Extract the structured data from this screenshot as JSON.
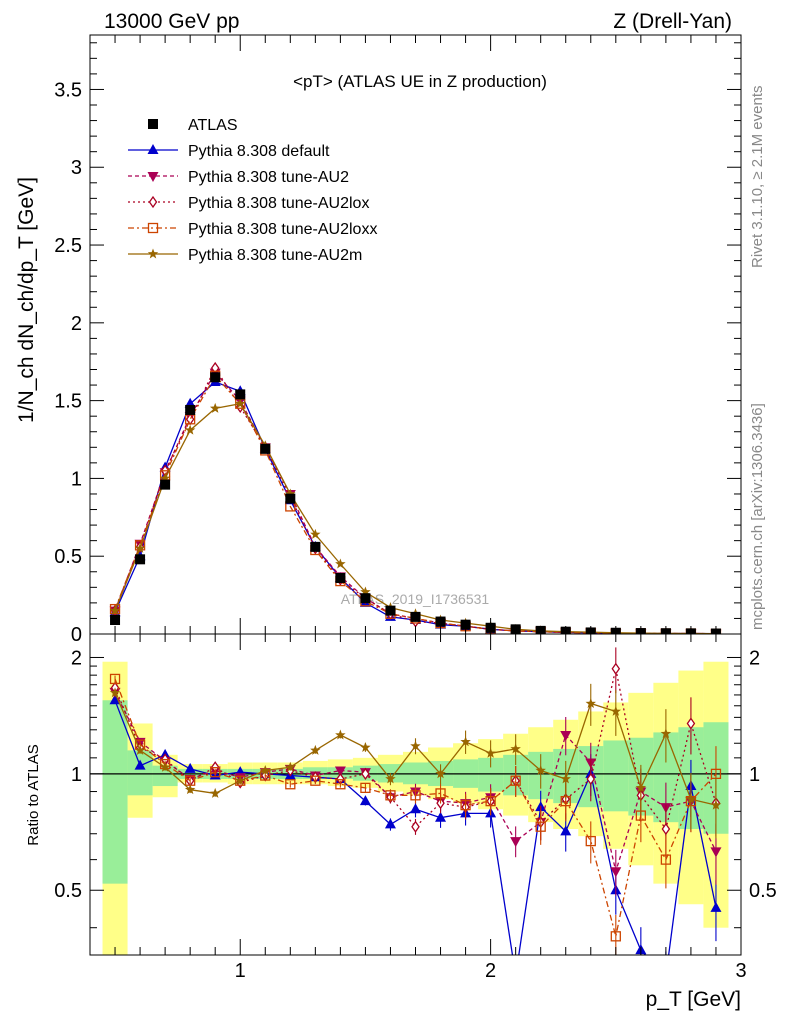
{
  "header": {
    "left": "13000 GeV pp",
    "right": "Z (Drell-Yan)"
  },
  "side_text": {
    "rivet": "Rivet 3.1.10, ≥ 2.1M events",
    "mcplots": "mcplots.cern.ch [arXiv:1306.3436]"
  },
  "watermark": "ATLAS_2019_I1736531",
  "chart_data": [
    {
      "type": "line",
      "title": "<pT> (ATLAS UE in Z production)",
      "ylabel": "1/N_ch dN_ch/dp_T [GeV]",
      "xlabel": "",
      "xlim": [
        0.4,
        3.0
      ],
      "ylim": [
        0,
        3.85
      ],
      "yticks": [
        "0",
        "0.5",
        "1",
        "1.5",
        "2",
        "2.5",
        "3",
        "3.5"
      ],
      "ytick_values": [
        0,
        0.5,
        1,
        1.5,
        2,
        2.5,
        3,
        3.5
      ],
      "x": [
        0.5,
        0.6,
        0.7,
        0.8,
        0.9,
        1.0,
        1.1,
        1.2,
        1.3,
        1.4,
        1.5,
        1.6,
        1.7,
        1.8,
        1.9,
        2.0,
        2.1,
        2.2,
        2.3,
        2.4,
        2.5,
        2.6,
        2.7,
        2.8,
        2.9
      ],
      "series": [
        {
          "name": "ATLAS",
          "color": "#000000",
          "marker": "square",
          "values": [
            0.09,
            0.48,
            0.96,
            1.44,
            1.65,
            1.54,
            1.19,
            0.87,
            0.56,
            0.36,
            0.23,
            0.15,
            0.11,
            0.08,
            0.06,
            0.04,
            0.03,
            0.02,
            0.015,
            0.01,
            0.008,
            0.006,
            0.005,
            0.004,
            0.003
          ]
        },
        {
          "name": "Pythia 8.308 default",
          "color": "#0000cc",
          "marker": "triangle-up",
          "dash": "",
          "values": [
            0.14,
            0.5,
            1.07,
            1.48,
            1.62,
            1.56,
            1.19,
            0.86,
            0.56,
            0.36,
            0.2,
            0.11,
            0.09,
            0.06,
            0.05,
            0.03,
            0.02,
            0.015,
            0.01,
            0.008,
            0.005,
            0.004,
            0.003,
            0.003,
            0.002
          ]
        },
        {
          "name": "Pythia 8.308 tune-AU2",
          "color": "#aa0055",
          "marker": "triangle-down",
          "dash": "4,3",
          "values": [
            0.15,
            0.58,
            1.04,
            1.4,
            1.68,
            1.5,
            1.2,
            0.9,
            0.56,
            0.37,
            0.23,
            0.13,
            0.1,
            0.07,
            0.05,
            0.03,
            0.02,
            0.015,
            0.01,
            0.008,
            0.005,
            0.004,
            0.003,
            0.003,
            0.002
          ]
        },
        {
          "name": "Pythia 8.308 tune-AU2lox",
          "color": "#aa0022",
          "marker": "diamond-open",
          "dash": "2,3",
          "values": [
            0.15,
            0.56,
            1.05,
            1.38,
            1.71,
            1.46,
            1.2,
            0.88,
            0.55,
            0.35,
            0.23,
            0.13,
            0.08,
            0.07,
            0.05,
            0.03,
            0.02,
            0.015,
            0.01,
            0.008,
            0.005,
            0.004,
            0.003,
            0.003,
            0.002
          ]
        },
        {
          "name": "Pythia 8.308 tune-AU2loxx",
          "color": "#cc4400",
          "marker": "square-open",
          "dash": "6,3,2,3",
          "values": [
            0.16,
            0.57,
            1.02,
            1.38,
            1.66,
            1.48,
            1.18,
            0.82,
            0.54,
            0.34,
            0.21,
            0.13,
            0.1,
            0.07,
            0.05,
            0.03,
            0.02,
            0.015,
            0.01,
            0.008,
            0.005,
            0.004,
            0.003,
            0.003,
            0.002
          ]
        },
        {
          "name": "Pythia 8.308 tune-AU2m",
          "color": "#996600",
          "marker": "star",
          "dash": "",
          "values": [
            0.15,
            0.55,
            1.0,
            1.31,
            1.45,
            1.48,
            1.21,
            0.9,
            0.64,
            0.45,
            0.27,
            0.17,
            0.13,
            0.09,
            0.07,
            0.05,
            0.03,
            0.02,
            0.015,
            0.012,
            0.008,
            0.006,
            0.004,
            0.003,
            0.002
          ]
        }
      ]
    },
    {
      "type": "line",
      "title": "",
      "xlabel": "p_T [GeV]",
      "ylabel": "Ratio to ATLAS",
      "xlim": [
        0.4,
        3.0
      ],
      "ylim": [
        0.34,
        2.3
      ],
      "xticks": [
        "1",
        "2",
        "3"
      ],
      "xtick_values": [
        1,
        2,
        3
      ],
      "yticks": [
        "0.5",
        "1",
        "2"
      ],
      "ytick_values": [
        0.5,
        1,
        2
      ],
      "x": [
        0.5,
        0.6,
        0.7,
        0.8,
        0.9,
        1.0,
        1.1,
        1.2,
        1.3,
        1.4,
        1.5,
        1.6,
        1.7,
        1.8,
        1.9,
        2.0,
        2.1,
        2.2,
        2.3,
        2.4,
        2.5,
        2.6,
        2.7,
        2.8,
        2.9
      ],
      "bands": {
        "stat_sys_inner": {
          "color": "#99ee99",
          "lo": [
            0.52,
            0.88,
            0.93,
            0.97,
            0.97,
            0.97,
            0.97,
            0.97,
            0.97,
            0.97,
            0.96,
            0.95,
            0.94,
            0.93,
            0.92,
            0.9,
            0.88,
            0.86,
            0.84,
            0.82,
            0.8,
            0.78,
            0.75,
            0.72,
            0.7
          ],
          "hi": [
            1.55,
            1.15,
            1.05,
            1.03,
            1.03,
            1.03,
            1.03,
            1.03,
            1.04,
            1.04,
            1.05,
            1.06,
            1.07,
            1.08,
            1.09,
            1.1,
            1.12,
            1.14,
            1.16,
            1.18,
            1.22,
            1.24,
            1.28,
            1.32,
            1.36
          ]
        },
        "stat_sys_outer": {
          "color": "#ffff88",
          "lo": [
            0.3,
            0.77,
            0.87,
            0.95,
            0.95,
            0.94,
            0.94,
            0.94,
            0.94,
            0.93,
            0.92,
            0.9,
            0.88,
            0.86,
            0.84,
            0.81,
            0.78,
            0.75,
            0.72,
            0.69,
            0.64,
            0.58,
            0.52,
            0.46,
            0.4
          ],
          "hi": [
            1.95,
            1.35,
            1.12,
            1.06,
            1.06,
            1.07,
            1.07,
            1.07,
            1.08,
            1.09,
            1.1,
            1.12,
            1.14,
            1.17,
            1.2,
            1.23,
            1.27,
            1.32,
            1.38,
            1.45,
            1.53,
            1.62,
            1.72,
            1.85,
            1.95
          ]
        }
      },
      "series": [
        {
          "name": "Pythia 8.308 default",
          "color": "#0000cc",
          "marker": "triangle-up",
          "dash": "",
          "values": [
            1.55,
            1.05,
            1.12,
            1.03,
            0.99,
            1.01,
            1.0,
            0.99,
            0.98,
            0.97,
            0.85,
            0.74,
            0.81,
            0.77,
            0.79,
            0.79,
            0.3,
            0.82,
            0.71,
            1.0,
            0.5,
            0.35,
            0.3,
            0.93,
            0.45
          ]
        },
        {
          "name": "Pythia 8.308 tune-AU2",
          "color": "#aa0055",
          "marker": "triangle-down",
          "dash": "4,3",
          "values": [
            1.63,
            1.21,
            1.08,
            0.97,
            1.02,
            0.98,
            1.01,
            1.03,
            0.99,
            1.02,
            1.01,
            0.87,
            0.9,
            0.85,
            0.84,
            0.87,
            0.67,
            0.75,
            1.26,
            1.07,
            0.56,
            0.9,
            0.82,
            0.85,
            0.63
          ]
        },
        {
          "name": "Pythia 8.308 tune-AU2lox",
          "color": "#aa0022",
          "marker": "diamond-open",
          "dash": "2,3",
          "values": [
            1.67,
            1.17,
            1.09,
            0.96,
            1.04,
            0.95,
            0.99,
            1.02,
            0.98,
            0.97,
            1.0,
            0.87,
            0.73,
            0.84,
            0.82,
            0.85,
            0.96,
            0.75,
            0.86,
            0.97,
            1.87,
            0.88,
            0.72,
            1.35,
            0.84
          ]
        },
        {
          "name": "Pythia 8.308 tune-AU2loxx",
          "color": "#cc4400",
          "marker": "square-open",
          "dash": "6,3,2,3",
          "values": [
            1.76,
            1.19,
            1.06,
            0.96,
            1.01,
            0.96,
            0.99,
            0.94,
            0.96,
            0.94,
            0.92,
            0.88,
            0.88,
            0.89,
            0.83,
            0.85,
            0.96,
            0.73,
            0.85,
            0.67,
            0.38,
            0.78,
            0.6,
            0.85,
            1.0
          ]
        },
        {
          "name": "Pythia 8.308 tune-AU2m",
          "color": "#996600",
          "marker": "star",
          "dash": "",
          "values": [
            1.62,
            1.15,
            1.04,
            0.91,
            0.89,
            0.96,
            1.02,
            1.04,
            1.15,
            1.26,
            1.17,
            0.97,
            1.18,
            1.0,
            1.21,
            1.13,
            1.16,
            1.02,
            0.97,
            1.52,
            1.45,
            0.92,
            1.27,
            0.86,
            0.83
          ]
        }
      ]
    }
  ]
}
